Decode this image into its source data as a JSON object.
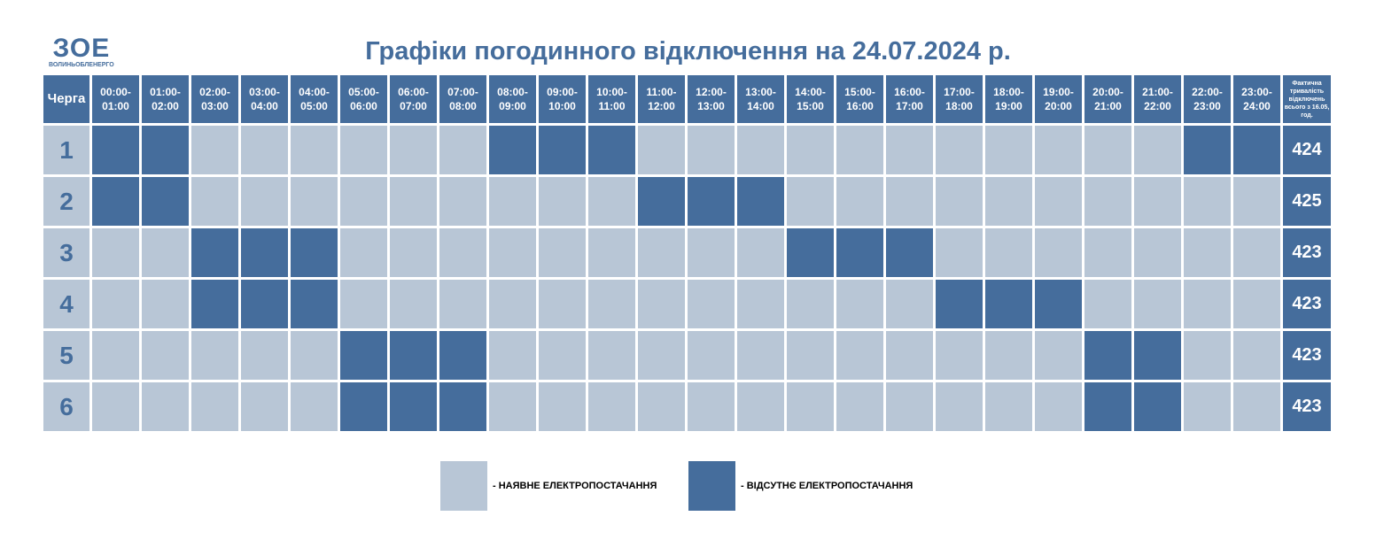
{
  "logo": {
    "mark": "ЗОЕ",
    "name": "ВОЛИНЬОБЛЕНЕРГО"
  },
  "title": "Графіки погодинного відключення на 24.07.2024 р.",
  "colors": {
    "on": "#b8c6d6",
    "off": "#456d9c"
  },
  "table": {
    "queue_header": "Черга",
    "hours": [
      {
        "from": "00:00-",
        "to": "01:00"
      },
      {
        "from": "01:00-",
        "to": "02:00"
      },
      {
        "from": "02:00-",
        "to": "03:00"
      },
      {
        "from": "03:00-",
        "to": "04:00"
      },
      {
        "from": "04:00-",
        "to": "05:00"
      },
      {
        "from": "05:00-",
        "to": "06:00"
      },
      {
        "from": "06:00-",
        "to": "07:00"
      },
      {
        "from": "07:00-",
        "to": "08:00"
      },
      {
        "from": "08:00-",
        "to": "09:00"
      },
      {
        "from": "09:00-",
        "to": "10:00"
      },
      {
        "from": "10:00-",
        "to": "11:00"
      },
      {
        "from": "11:00-",
        "to": "12:00"
      },
      {
        "from": "12:00-",
        "to": "13:00"
      },
      {
        "from": "13:00-",
        "to": "14:00"
      },
      {
        "from": "14:00-",
        "to": "15:00"
      },
      {
        "from": "15:00-",
        "to": "16:00"
      },
      {
        "from": "16:00-",
        "to": "17:00"
      },
      {
        "from": "17:00-",
        "to": "18:00"
      },
      {
        "from": "18:00-",
        "to": "19:00"
      },
      {
        "from": "19:00-",
        "to": "20:00"
      },
      {
        "from": "20:00-",
        "to": "21:00"
      },
      {
        "from": "21:00-",
        "to": "22:00"
      },
      {
        "from": "22:00-",
        "to": "23:00"
      },
      {
        "from": "23:00-",
        "to": "24:00"
      }
    ],
    "total_header": "Фактична тривалість відключень всього з 16.05, год.",
    "rows": [
      {
        "queue": "1",
        "outage": [
          1,
          1,
          0,
          0,
          0,
          0,
          0,
          0,
          1,
          1,
          1,
          0,
          0,
          0,
          0,
          0,
          0,
          0,
          0,
          0,
          0,
          0,
          1,
          1
        ],
        "total": "424"
      },
      {
        "queue": "2",
        "outage": [
          1,
          1,
          0,
          0,
          0,
          0,
          0,
          0,
          0,
          0,
          0,
          1,
          1,
          1,
          0,
          0,
          0,
          0,
          0,
          0,
          0,
          0,
          0,
          0
        ],
        "total": "425"
      },
      {
        "queue": "3",
        "outage": [
          0,
          0,
          1,
          1,
          1,
          0,
          0,
          0,
          0,
          0,
          0,
          0,
          0,
          0,
          1,
          1,
          1,
          0,
          0,
          0,
          0,
          0,
          0,
          0
        ],
        "total": "423"
      },
      {
        "queue": "4",
        "outage": [
          0,
          0,
          1,
          1,
          1,
          0,
          0,
          0,
          0,
          0,
          0,
          0,
          0,
          0,
          0,
          0,
          0,
          1,
          1,
          1,
          0,
          0,
          0,
          0
        ],
        "total": "423"
      },
      {
        "queue": "5",
        "outage": [
          0,
          0,
          0,
          0,
          0,
          1,
          1,
          1,
          0,
          0,
          0,
          0,
          0,
          0,
          0,
          0,
          0,
          0,
          0,
          0,
          1,
          1,
          0,
          0
        ],
        "total": "423"
      },
      {
        "queue": "6",
        "outage": [
          0,
          0,
          0,
          0,
          0,
          1,
          1,
          1,
          0,
          0,
          0,
          0,
          0,
          0,
          0,
          0,
          0,
          0,
          0,
          0,
          1,
          1,
          0,
          0
        ],
        "total": "423"
      }
    ]
  },
  "legend": {
    "on": "- НАЯВНЕ ЕЛЕКТРОПОСТАЧАННЯ",
    "off": "- ВІДСУТНЄ ЕЛЕКТРОПОСТАЧАННЯ"
  }
}
